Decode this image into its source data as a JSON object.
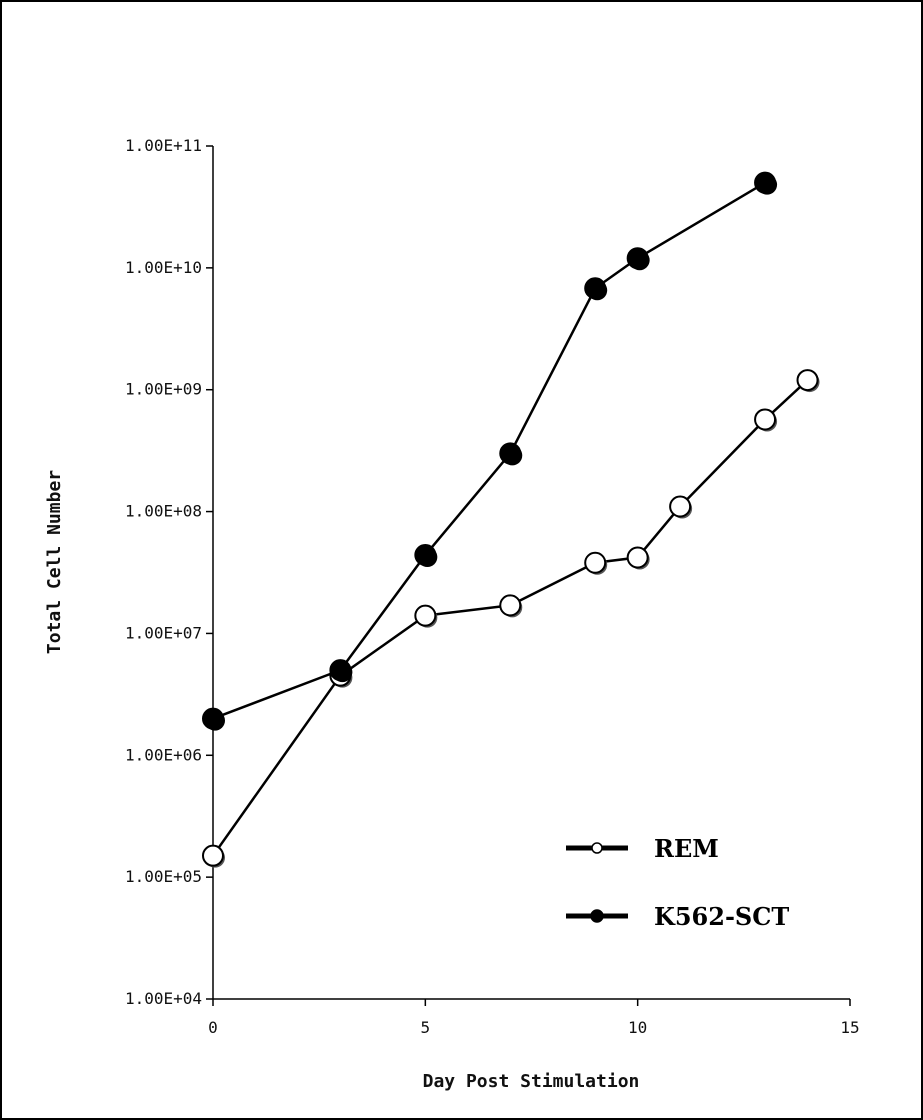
{
  "chart_data": {
    "type": "line",
    "title": "",
    "xlabel": "Day Post Stimulation",
    "ylabel": "Total Cell Number",
    "x_ticks": [
      "0",
      "5",
      "10",
      "15"
    ],
    "x_tick_values": [
      0,
      5,
      10,
      15
    ],
    "y_ticks": [
      "1.00E+04",
      "1.00E+05",
      "1.00E+06",
      "1.00E+07",
      "1.00E+08",
      "1.00E+09",
      "1.00E+10",
      "1.00E+11"
    ],
    "y_tick_values": [
      10000,
      100000,
      1000000,
      10000000,
      100000000,
      1000000000,
      10000000000,
      100000000000
    ],
    "xlim": [
      0,
      15
    ],
    "ylim": [
      10000,
      100000000000
    ],
    "y_scale": "log",
    "grid": false,
    "legend_position": "bottom-right",
    "series": [
      {
        "name": "REM",
        "marker": "open-circle",
        "color": "#000000",
        "x": [
          0,
          3,
          5,
          7,
          9,
          10,
          11,
          13,
          14
        ],
        "y": [
          150000,
          4500000,
          14000000,
          17000000,
          38000000,
          42000000,
          110000000,
          570000000,
          1200000000
        ]
      },
      {
        "name": "K562-SCT",
        "marker": "filled-circle",
        "color": "#000000",
        "x": [
          0,
          3,
          5,
          7,
          9,
          10,
          13
        ],
        "y": [
          2000000,
          5000000,
          44000000,
          300000000,
          6800000000,
          12000000000,
          50000000000
        ]
      }
    ]
  }
}
